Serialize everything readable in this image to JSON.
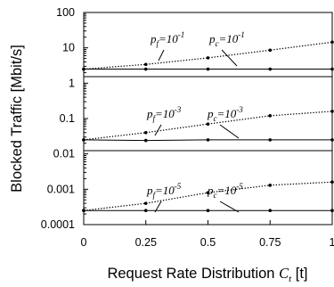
{
  "chart_data": {
    "type": "line",
    "title": "",
    "xlabel": "Request Rate Distribution",
    "xlabel_symbol": "C",
    "xlabel_symbol_sub": "t",
    "xlabel_unit": "[t]",
    "ylabel": "Blocked Traffic [Mbit/s]",
    "y_scale": "log",
    "xlim": [
      0,
      1
    ],
    "ylim": [
      0.0001,
      100
    ],
    "x_ticks": [
      "0",
      "0.25",
      "0.5",
      "0.75",
      "1"
    ],
    "y_ticks": [
      "100",
      "10",
      "1",
      "0.1",
      "0.01",
      "0.001",
      "0.0001"
    ],
    "grid": false,
    "x": [
      0,
      0.25,
      0.5,
      0.75,
      1
    ],
    "series": [
      {
        "style": "dotted",
        "values": [
          2.5,
          3.4,
          5.2,
          8.6,
          14.5
        ]
      },
      {
        "style": "solid",
        "values": [
          2.5,
          2.5,
          2.5,
          2.5,
          2.5
        ]
      },
      {
        "style": "dotted",
        "values": [
          0.025,
          0.04,
          0.07,
          0.12,
          0.16
        ]
      },
      {
        "style": "solid",
        "values": [
          0.025,
          0.024,
          0.025,
          0.025,
          0.025
        ]
      },
      {
        "style": "dotted",
        "values": [
          0.00025,
          0.0004,
          0.0008,
          0.0013,
          0.0016
        ]
      },
      {
        "style": "solid",
        "values": [
          0.00025,
          0.00025,
          0.00025,
          0.00025,
          0.00025
        ]
      }
    ],
    "annotations": [
      {
        "base": "p",
        "sub": "f",
        "rest": "=10",
        "sup": "-1"
      },
      {
        "base": "p",
        "sub": "c",
        "rest": "=10",
        "sup": "-1"
      },
      {
        "base": "p",
        "sub": "f",
        "rest": "=10",
        "sup": "-3"
      },
      {
        "base": "p",
        "sub": "c",
        "rest": "=10",
        "sup": "-3"
      },
      {
        "base": "p",
        "sub": "f",
        "rest": "=10",
        "sup": "-5"
      },
      {
        "base": "p",
        "sub": "c",
        "rest": "=10",
        "sup": "-5"
      }
    ],
    "colors": {
      "line": "#000000",
      "background": "#ffffff"
    }
  }
}
